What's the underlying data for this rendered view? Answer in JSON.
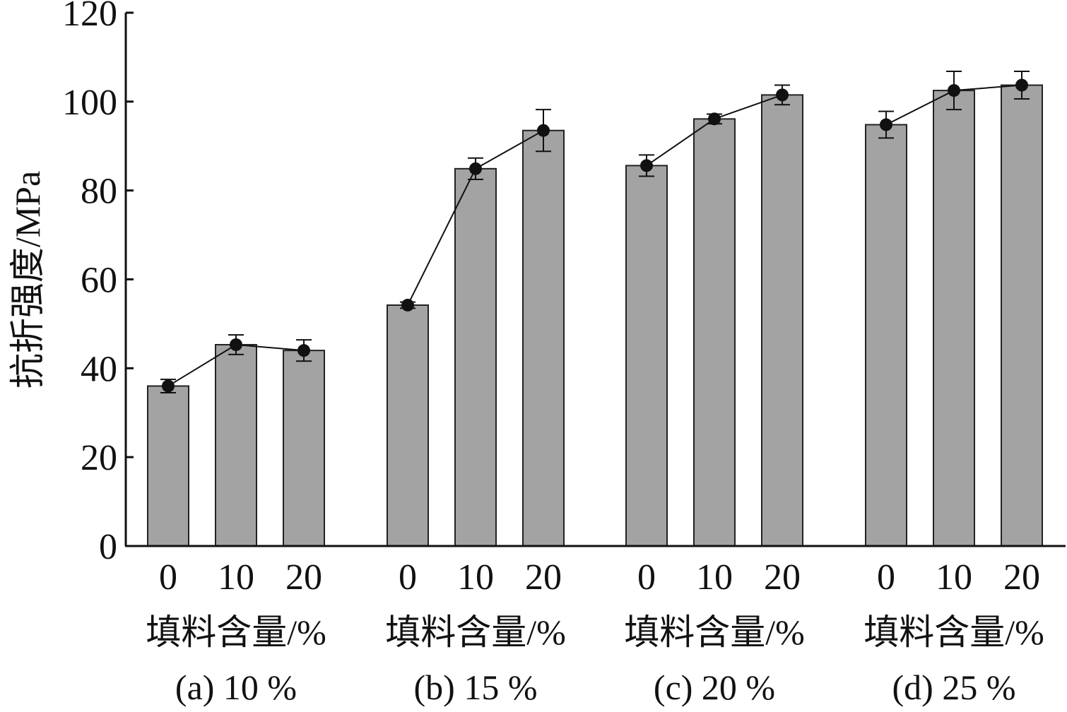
{
  "chart_data": {
    "type": "bar",
    "title": "",
    "ylabel": "抗折强度/MPa",
    "ylim": [
      0,
      120
    ],
    "yticks": [
      0,
      20,
      40,
      60,
      80,
      100,
      120
    ],
    "grid": false,
    "legend": "none",
    "bar_color": "#a3a3a3",
    "line_color": "#111111",
    "groups": [
      {
        "xlabel": "填料含量/%",
        "title": "(a) 10 %",
        "categories": [
          "0",
          "10",
          "20"
        ],
        "values": [
          36,
          45.3,
          44
        ],
        "errors": [
          1.5,
          2.2,
          2.4
        ]
      },
      {
        "xlabel": "填料含量/%",
        "title": "(b) 15 %",
        "categories": [
          "0",
          "10",
          "20"
        ],
        "values": [
          54.2,
          84.9,
          93.5
        ],
        "errors": [
          0.7,
          2.4,
          4.7
        ]
      },
      {
        "xlabel": "填料含量/%",
        "title": "(c) 20 %",
        "categories": [
          "0",
          "10",
          "20"
        ],
        "values": [
          85.6,
          96.1,
          101.5
        ],
        "errors": [
          2.4,
          1.1,
          2.2
        ]
      },
      {
        "xlabel": "填料含量/%",
        "title": "(d) 25 %",
        "categories": [
          "0",
          "10",
          "20"
        ],
        "values": [
          94.8,
          102.5,
          103.7
        ],
        "errors": [
          3,
          4.3,
          3.1
        ]
      }
    ]
  }
}
